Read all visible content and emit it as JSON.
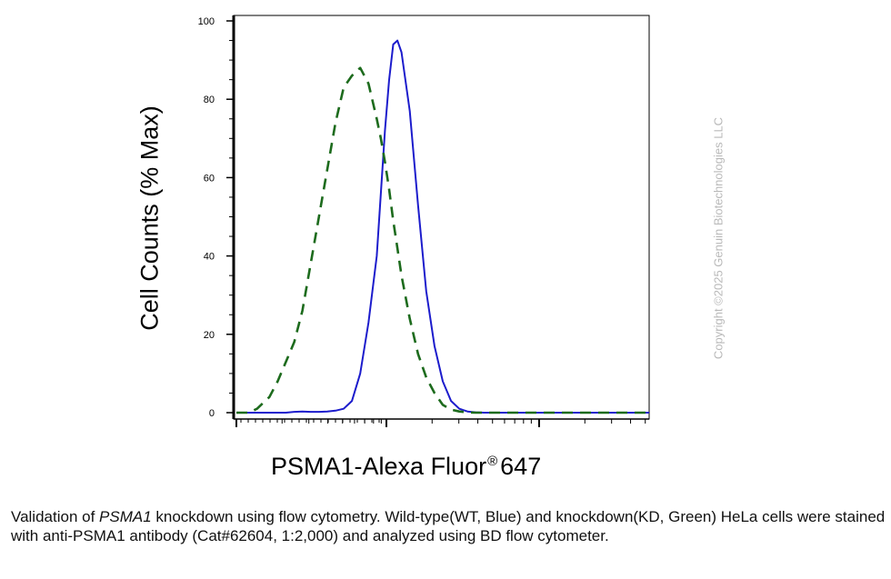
{
  "chart_data": {
    "type": "line",
    "title": "",
    "xlabel": "PSMA1-Alexa Fluor",
    "xlabel_superscript": "®",
    "xlabel_suffix": "647",
    "ylabel": "Cell Counts (% Max)",
    "ylim": [
      0,
      100
    ],
    "y_ticks": [
      "0",
      "20",
      "40",
      "60",
      "80",
      "100"
    ],
    "x_scale": "log",
    "x_tick_labels_shown": false,
    "grid": false,
    "legend": "none",
    "x_positions": [
      0.0,
      0.03,
      0.05,
      0.08,
      0.1,
      0.12,
      0.14,
      0.16,
      0.18,
      0.2,
      0.22,
      0.24,
      0.26,
      0.28,
      0.3,
      0.32,
      0.34,
      0.35,
      0.36,
      0.37,
      0.38,
      0.39,
      0.4,
      0.42,
      0.44,
      0.46,
      0.48,
      0.5,
      0.52,
      0.54,
      0.56,
      0.58,
      0.6,
      0.62,
      0.64,
      0.66,
      0.68,
      0.7,
      0.72,
      0.74,
      0.76,
      0.78,
      0.8,
      0.84,
      0.88,
      0.92,
      0.96,
      1.0
    ],
    "series": [
      {
        "color": "#1c1ccc",
        "style": "solid",
        "values": [
          0.0,
          0.0,
          0.0,
          0.0,
          0.0,
          0.0,
          0.2,
          0.3,
          0.2,
          0.2,
          0.3,
          0.5,
          1.0,
          3.0,
          10.0,
          23.0,
          40.0,
          56.0,
          72.0,
          85.0,
          94.0,
          95.0,
          92.0,
          77.0,
          53.0,
          31.0,
          17.0,
          8.0,
          3.0,
          1.0,
          0.3,
          0.1,
          0.0,
          0.0,
          0.0,
          0.0,
          0.0,
          0.0,
          0.0,
          0.0,
          0.0,
          0.0,
          0.0,
          0.0,
          0.0,
          0.0,
          0.0,
          0.0
        ]
      },
      {
        "color": "#1d6b1d",
        "style": "dashed",
        "values": [
          0.0,
          0.0,
          1.0,
          4.0,
          8.0,
          13.0,
          18.0,
          26.0,
          38.0,
          50.0,
          62.0,
          74.0,
          83.0,
          86.0,
          88.0,
          84.0,
          75.0,
          70.0,
          64.0,
          57.0,
          49.0,
          42.0,
          35.0,
          24.0,
          15.0,
          9.0,
          5.0,
          2.0,
          0.8,
          0.3,
          0.1,
          0.0,
          0.0,
          0.0,
          0.0,
          0.0,
          0.0,
          0.0,
          0.0,
          0.0,
          0.0,
          0.0,
          0.0,
          0.0,
          0.0,
          0.0,
          0.0,
          0.0
        ]
      }
    ]
  },
  "copyright": "Copyright ©2025 Genuin Biotechnologies LLC",
  "caption": {
    "part1": "Validation of ",
    "gene": "PSMA1",
    "part2": " knockdown using flow cytometry. Wild-type(WT, Blue) and knockdown(KD, Green) HeLa cells were stained with anti-PSMA1 antibody (Cat#62604, 1:2,000) and analyzed using BD flow cytometer."
  }
}
